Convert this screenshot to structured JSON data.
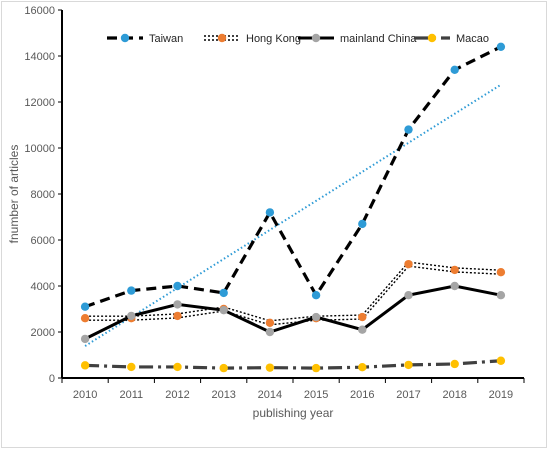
{
  "chart_data": {
    "type": "line",
    "xlabel": "publishing year",
    "ylabel": "fnumber of articles",
    "ylim": [
      0,
      16000
    ],
    "yticks": [
      0,
      2000,
      4000,
      6000,
      8000,
      10000,
      12000,
      14000,
      16000
    ],
    "categories": [
      "2010",
      "2011",
      "2012",
      "2013",
      "2014",
      "2015",
      "2016",
      "2017",
      "2018",
      "2019"
    ],
    "grid": false,
    "legend_position": "top",
    "series": [
      {
        "name": "Taiwan",
        "line_style": "dashed",
        "line_color": "#000000",
        "marker_color": "#2e9bd6",
        "values": [
          3100,
          3800,
          4000,
          3700,
          7200,
          3600,
          6700,
          10800,
          13400,
          14400
        ]
      },
      {
        "name": "Hong Kong",
        "line_style": "double-dotted",
        "line_color": "#000000",
        "marker_color": "#ed7d31",
        "values": [
          2600,
          2600,
          2700,
          3000,
          2400,
          2600,
          2650,
          4950,
          4700,
          4600
        ]
      },
      {
        "name": "mainland China",
        "line_style": "solid",
        "line_color": "#000000",
        "marker_color": "#a5a5a5",
        "values": [
          1700,
          2700,
          3200,
          2950,
          2000,
          2650,
          2100,
          3600,
          4000,
          3600
        ]
      },
      {
        "name": "Macao",
        "line_style": "dash-dot",
        "line_color": "#404040",
        "marker_color": "#ffc000",
        "values": [
          550,
          480,
          480,
          430,
          450,
          430,
          470,
          570,
          610,
          750
        ]
      }
    ],
    "trendline": {
      "series": "Taiwan",
      "type": "linear",
      "style": "dotted",
      "color": "#2e9bd6"
    }
  }
}
